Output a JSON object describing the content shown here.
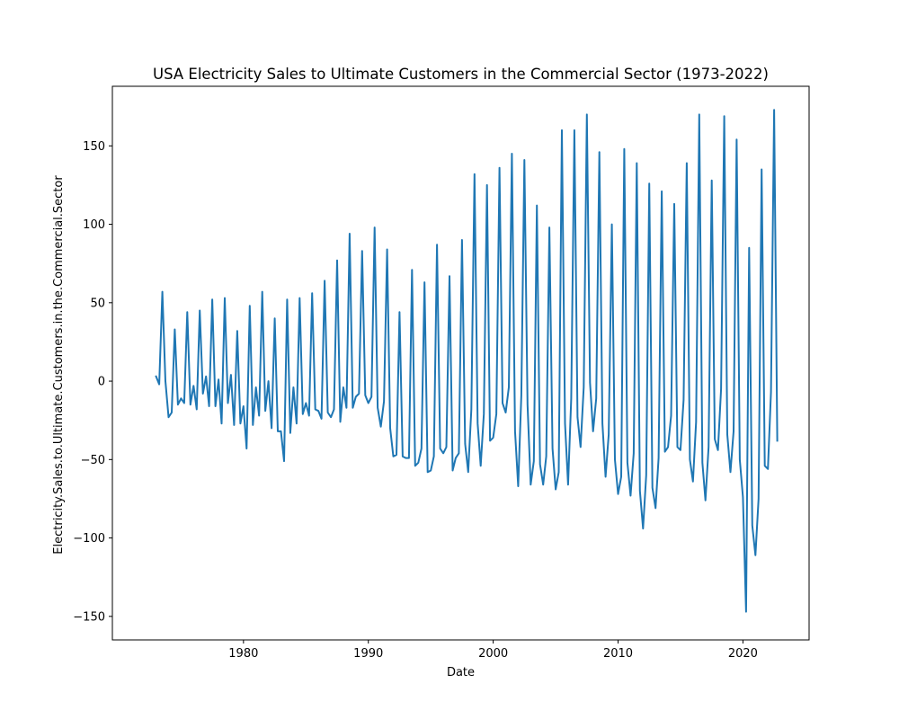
{
  "chart_data": {
    "type": "line",
    "title": "USA Electricity Sales to Ultimate Customers in the Commercial Sector (1973-2022)",
    "xlabel": "Date",
    "ylabel": "Electricity.Sales.to.Ultimate.Customers.in.the.Commercial.Sector",
    "xlim": [
      1969.5,
      2025.3
    ],
    "ylim": [
      -165,
      188
    ],
    "x_ticks": [
      1980,
      1990,
      2000,
      2010,
      2020
    ],
    "x_tick_labels": [
      "1980",
      "1990",
      "2000",
      "2010",
      "2020"
    ],
    "y_ticks": [
      -150,
      -100,
      -50,
      0,
      50,
      100,
      150
    ],
    "y_tick_labels": [
      "−150",
      "−100",
      "−50",
      "0",
      "50",
      "100",
      "150"
    ],
    "grid": false,
    "legend": "none",
    "series": [
      {
        "color": "#1f77b4",
        "x": [
          1973.0,
          1973.25,
          1973.5,
          1973.75,
          1974.0,
          1974.25,
          1974.5,
          1974.75,
          1975.0,
          1975.25,
          1975.5,
          1975.75,
          1976.0,
          1976.25,
          1976.5,
          1976.75,
          1977.0,
          1977.25,
          1977.5,
          1977.75,
          1978.0,
          1978.25,
          1978.5,
          1978.75,
          1979.0,
          1979.25,
          1979.5,
          1979.75,
          1980.0,
          1980.25,
          1980.5,
          1980.75,
          1981.0,
          1981.25,
          1981.5,
          1981.75,
          1982.0,
          1982.25,
          1982.5,
          1982.75,
          1983.0,
          1983.25,
          1983.5,
          1983.75,
          1984.0,
          1984.25,
          1984.5,
          1984.75,
          1985.0,
          1985.25,
          1985.5,
          1985.75,
          1986.0,
          1986.25,
          1986.5,
          1986.75,
          1987.0,
          1987.25,
          1987.5,
          1987.75,
          1988.0,
          1988.25,
          1988.5,
          1988.75,
          1989.0,
          1989.25,
          1989.5,
          1989.75,
          1990.0,
          1990.25,
          1990.5,
          1990.75,
          1991.0,
          1991.25,
          1991.5,
          1991.75,
          1992.0,
          1992.25,
          1992.5,
          1992.75,
          1993.0,
          1993.25,
          1993.5,
          1993.75,
          1994.0,
          1994.25,
          1994.5,
          1994.75,
          1995.0,
          1995.25,
          1995.5,
          1995.75,
          1996.0,
          1996.25,
          1996.5,
          1996.75,
          1997.0,
          1997.25,
          1997.5,
          1997.75,
          1998.0,
          1998.25,
          1998.5,
          1998.75,
          1999.0,
          1999.25,
          1999.5,
          1999.75,
          2000.0,
          2000.25,
          2000.5,
          2000.75,
          2001.0,
          2001.25,
          2001.5,
          2001.75,
          2002.0,
          2002.25,
          2002.5,
          2002.75,
          2003.0,
          2003.25,
          2003.5,
          2003.75,
          2004.0,
          2004.25,
          2004.5,
          2004.75,
          2005.0,
          2005.25,
          2005.5,
          2005.75,
          2006.0,
          2006.25,
          2006.5,
          2006.75,
          2007.0,
          2007.25,
          2007.5,
          2007.75,
          2008.0,
          2008.25,
          2008.5,
          2008.75,
          2009.0,
          2009.25,
          2009.5,
          2009.75,
          2010.0,
          2010.25,
          2010.5,
          2010.75,
          2011.0,
          2011.25,
          2011.5,
          2011.75,
          2012.0,
          2012.25,
          2012.5,
          2012.75,
          2013.0,
          2013.25,
          2013.5,
          2013.75,
          2014.0,
          2014.25,
          2014.5,
          2014.75,
          2015.0,
          2015.25,
          2015.5,
          2015.75,
          2016.0,
          2016.25,
          2016.5,
          2016.75,
          2017.0,
          2017.25,
          2017.5,
          2017.75,
          2018.0,
          2018.25,
          2018.5,
          2018.75,
          2019.0,
          2019.25,
          2019.5,
          2019.75,
          2020.0,
          2020.25,
          2020.5,
          2020.75,
          2021.0,
          2021.25,
          2021.5,
          2021.75,
          2022.0,
          2022.25,
          2022.5,
          2022.75
        ],
        "y": [
          3,
          -2,
          57,
          0,
          -23,
          -20,
          33,
          -15,
          -11,
          -14,
          44,
          -15,
          -3,
          -18,
          45,
          -8,
          3,
          -16,
          52,
          -16,
          1,
          -27,
          53,
          -14,
          4,
          -28,
          32,
          -27,
          -16,
          -43,
          48,
          -28,
          -4,
          -22,
          57,
          -19,
          0,
          -30,
          40,
          -32,
          -32,
          -51,
          52,
          -33,
          -4,
          -27,
          53,
          -21,
          -14,
          -22,
          56,
          -18,
          -19,
          -24,
          64,
          -20,
          -23,
          -18,
          77,
          -26,
          -4,
          -17,
          94,
          -17,
          -10,
          -8,
          83,
          -9,
          -14,
          -10,
          98,
          -17,
          -29,
          -13,
          84,
          -30,
          -48,
          -47,
          44,
          -48,
          -49,
          -49,
          71,
          -54,
          -52,
          -43,
          63,
          -58,
          -57,
          -48,
          87,
          -43,
          -46,
          -42,
          67,
          -57,
          -49,
          -46,
          90,
          -40,
          -58,
          -18,
          132,
          -27,
          -54,
          -21,
          125,
          -38,
          -36,
          -21,
          136,
          -14,
          -20,
          -4,
          145,
          -32,
          -67,
          -9,
          141,
          -15,
          -66,
          -51,
          112,
          -53,
          -66,
          -48,
          98,
          -43,
          -69,
          -58,
          160,
          -27,
          -66,
          -11,
          160,
          -23,
          -42,
          -4,
          170,
          -1,
          -32,
          -11,
          146,
          -27,
          -61,
          -34,
          100,
          -50,
          -72,
          -61,
          148,
          -52,
          -73,
          -46,
          139,
          -70,
          -94,
          -60,
          126,
          -68,
          -81,
          -49,
          121,
          -45,
          -42,
          -22,
          113,
          -42,
          -44,
          -12,
          139,
          -50,
          -64,
          -26,
          170,
          -52,
          -76,
          -42,
          128,
          -37,
          -44,
          -5,
          169,
          -34,
          -58,
          -32,
          154,
          -50,
          -74,
          -147,
          85,
          -92,
          -111,
          -75,
          135,
          -54,
          -56,
          -7,
          173,
          -38
        ]
      }
    ]
  }
}
